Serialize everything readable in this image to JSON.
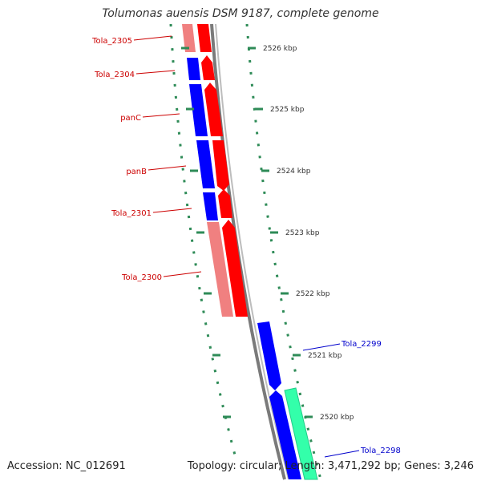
{
  "title": "Tolumonas auensis DSM 9187, complete genome",
  "footer": {
    "accession": "Accession: NC_012691",
    "summary": "Topology: circular; Length: 3,471,292 bp; Genes: 3,246"
  },
  "colors": {
    "forward_cds": "#ff0000",
    "forward_cds_light": "#f08080",
    "reverse_cds": "#0000ff",
    "other_feature": "#33ffaa",
    "backbone": "#808080",
    "tick": "#2e8b57",
    "forward_label": "#cc0000",
    "reverse_label": "#0000cc"
  },
  "ticks": [
    {
      "label": "2526 kbp"
    },
    {
      "label": "2525 kbp"
    },
    {
      "label": "2524 kbp"
    },
    {
      "label": "2523 kbp"
    },
    {
      "label": "2522 kbp"
    },
    {
      "label": "2521 kbp"
    },
    {
      "label": "2520 kbp"
    }
  ],
  "genes": [
    {
      "label": "Tola_2305",
      "strand": "forward"
    },
    {
      "label": "Tola_2304",
      "strand": "forward"
    },
    {
      "label": "panC",
      "strand": "forward"
    },
    {
      "label": "panB",
      "strand": "forward"
    },
    {
      "label": "Tola_2301",
      "strand": "forward"
    },
    {
      "label": "Tola_2300",
      "strand": "forward"
    },
    {
      "label": "Tola_2299",
      "strand": "reverse"
    },
    {
      "label": "Tola_2298",
      "strand": "reverse"
    }
  ]
}
